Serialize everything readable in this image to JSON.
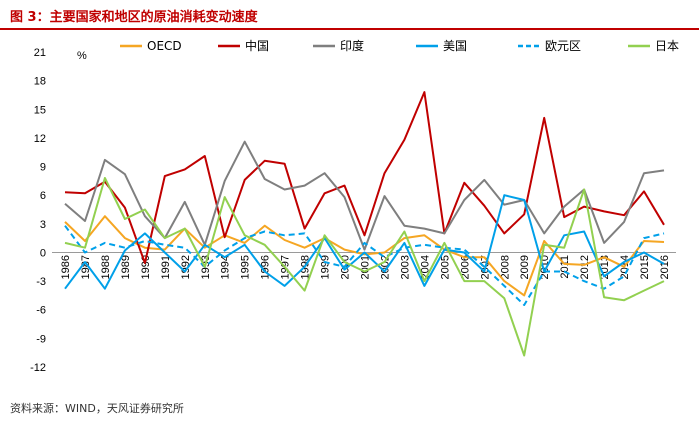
{
  "title": "图 3：主要国家和地区的原油消耗变动速度",
  "source": "资料来源：WIND，天风证券研究所",
  "chart_data": {
    "type": "line",
    "ylabel": "%",
    "xlabel": "",
    "ylim": [
      -12,
      21
    ],
    "yticks": [
      -12,
      -9,
      -6,
      -3,
      0,
      3,
      6,
      9,
      12,
      15,
      18,
      21
    ],
    "categories": [
      "1986",
      "1987",
      "1988",
      "1989",
      "1990",
      "1991",
      "1992",
      "1993",
      "1994",
      "1995",
      "1996",
      "1997",
      "1998",
      "1999",
      "2000",
      "2001",
      "2002",
      "2003",
      "2004",
      "2005",
      "2006",
      "2007",
      "2008",
      "2009",
      "2010",
      "2011",
      "2012",
      "2013",
      "2014",
      "2015",
      "2016"
    ],
    "legend_position": "top",
    "series": [
      {
        "name": "OECD",
        "color": "#f5a623",
        "dash": false,
        "values": [
          3.2,
          1.2,
          3.8,
          1.5,
          0.5,
          0.3,
          2.5,
          0.5,
          1.8,
          1.0,
          2.8,
          1.3,
          0.5,
          1.5,
          0.3,
          -0.2,
          0.0,
          1.5,
          1.8,
          0.3,
          -0.5,
          -0.5,
          -3.0,
          -4.5,
          1.2,
          -1.2,
          -1.3,
          -0.5,
          -1.5,
          1.2,
          1.1
        ]
      },
      {
        "name": "中国",
        "color": "#c00000",
        "dash": false,
        "values": [
          6.3,
          6.2,
          7.4,
          4.7,
          -1.1,
          8.0,
          8.7,
          10.1,
          1.6,
          7.6,
          9.6,
          9.3,
          2.5,
          6.2,
          7.0,
          1.8,
          8.3,
          11.8,
          16.8,
          2.0,
          7.3,
          4.9,
          2.0,
          4.0,
          14.1,
          3.7,
          4.8,
          4.3,
          3.9,
          6.4,
          2.9
        ]
      },
      {
        "name": "印度",
        "color": "#7f7f7f",
        "dash": false,
        "values": [
          5.1,
          3.3,
          9.7,
          8.2,
          3.8,
          1.5,
          5.3,
          0.8,
          7.5,
          11.6,
          7.7,
          6.6,
          7.0,
          8.3,
          5.8,
          0.3,
          5.9,
          2.8,
          2.5,
          2.0,
          5.5,
          7.6,
          5.0,
          5.5,
          2.0,
          4.8,
          6.6,
          1.0,
          3.2,
          8.3,
          8.6
        ]
      },
      {
        "name": "美国",
        "color": "#00a0e9",
        "dash": false,
        "values": [
          -3.8,
          -1.0,
          -3.8,
          0.2,
          2.0,
          0.0,
          -2.0,
          0.8,
          -0.5,
          0.8,
          -2.0,
          -3.5,
          -1.5,
          1.5,
          -1.8,
          0.0,
          -2.0,
          1.0,
          -3.5,
          0.3,
          0.0,
          -2.0,
          6.0,
          5.5,
          -2.0,
          1.8,
          2.2,
          -2.5,
          -1.0,
          0.0,
          -1.2
        ]
      },
      {
        "name": "欧元区",
        "color": "#00a0e9",
        "dash": true,
        "values": [
          2.8,
          0.0,
          1.0,
          0.5,
          1.2,
          0.8,
          0.5,
          -1.5,
          0.2,
          1.5,
          2.2,
          1.8,
          2.0,
          -1.0,
          -1.5,
          1.0,
          -0.5,
          0.5,
          0.8,
          0.5,
          0.3,
          -1.5,
          -3.5,
          -5.5,
          -2.0,
          -2.0,
          -3.0,
          -3.8,
          -2.5,
          1.5,
          2.0
        ]
      },
      {
        "name": "日本",
        "color": "#92d050",
        "dash": false,
        "values": [
          1.0,
          0.5,
          7.8,
          3.5,
          4.5,
          1.5,
          2.5,
          -1.5,
          5.8,
          1.8,
          0.8,
          -1.5,
          -4.0,
          1.8,
          -1.0,
          -2.0,
          -1.0,
          2.2,
          -3.0,
          1.0,
          -3.0,
          -3.0,
          -4.8,
          -10.8,
          0.8,
          0.5,
          6.6,
          -4.7,
          -5.0,
          -4.0,
          -3.0
        ]
      }
    ]
  }
}
